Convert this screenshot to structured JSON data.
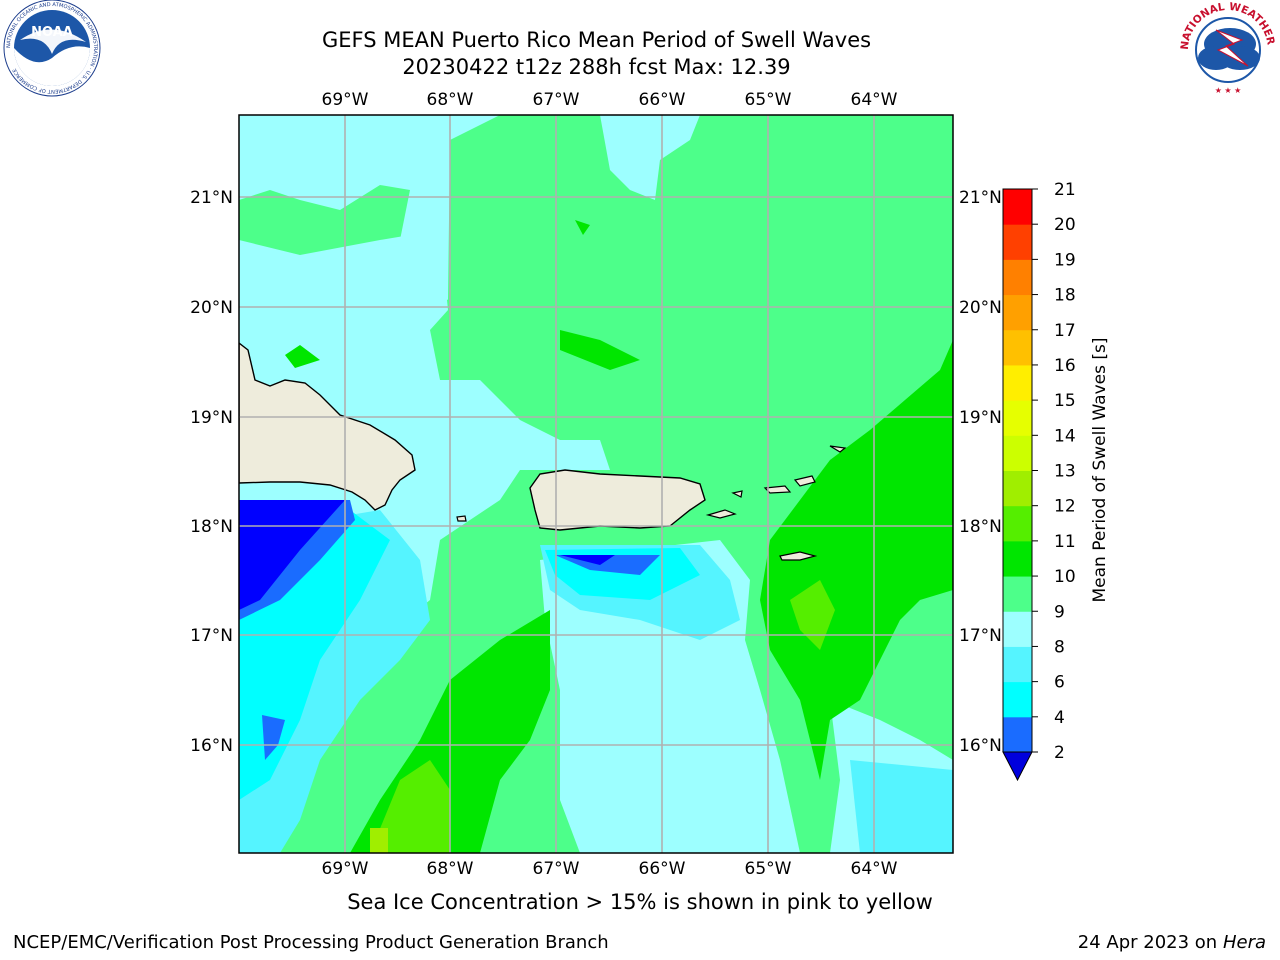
{
  "header": {
    "title_line1": "GEFS MEAN Puerto Rico Mean Period of Swell Waves",
    "title_line2": "20230422 t12z 288h fcst   Max: 12.39"
  },
  "logos": {
    "noaa_text": "NOAA",
    "noaa_ring_text": "NATIONAL OCEANIC AND ATMOSPHERIC ADMINISTRATION · U.S. DEPARTMENT OF COMMERCE",
    "nws_ring_text": "NATIONAL WEATHER SERVICE"
  },
  "map": {
    "lon_ticks": [
      "69°W",
      "68°W",
      "67°W",
      "66°W",
      "65°W",
      "64°W"
    ],
    "lat_ticks": [
      "21°N",
      "20°N",
      "19°N",
      "18°N",
      "17°N",
      "16°N"
    ],
    "colors": {
      "ocean_base": "#4dff8a",
      "land": "#eeecdc",
      "grid": "#b0b0b0"
    }
  },
  "colorbar": {
    "label": "Mean Period of Swell Waves [s]",
    "ticks": [
      "2",
      "4",
      "6",
      "8",
      "9",
      "10",
      "11",
      "12",
      "13",
      "14",
      "15",
      "16",
      "17",
      "18",
      "19",
      "20",
      "21"
    ],
    "colors": [
      "#0000ff",
      "#1a6cff",
      "#00ffff",
      "#55f4ff",
      "#9dffff",
      "#4dff8a",
      "#00e600",
      "#55ee00",
      "#a0ee00",
      "#ccff00",
      "#e6ff00",
      "#ffee00",
      "#ffc000",
      "#ffa000",
      "#ff8000",
      "#ff4000",
      "#ff0000"
    ],
    "extend_color": "#0000dd"
  },
  "footer": {
    "note": "Sea Ice Concentration > 15% is shown in pink to yellow",
    "credit": "NCEP/EMC/Verification Post Processing Product Generation Branch",
    "date_prefix": "24 Apr 2023 on ",
    "machine": "Hera"
  }
}
